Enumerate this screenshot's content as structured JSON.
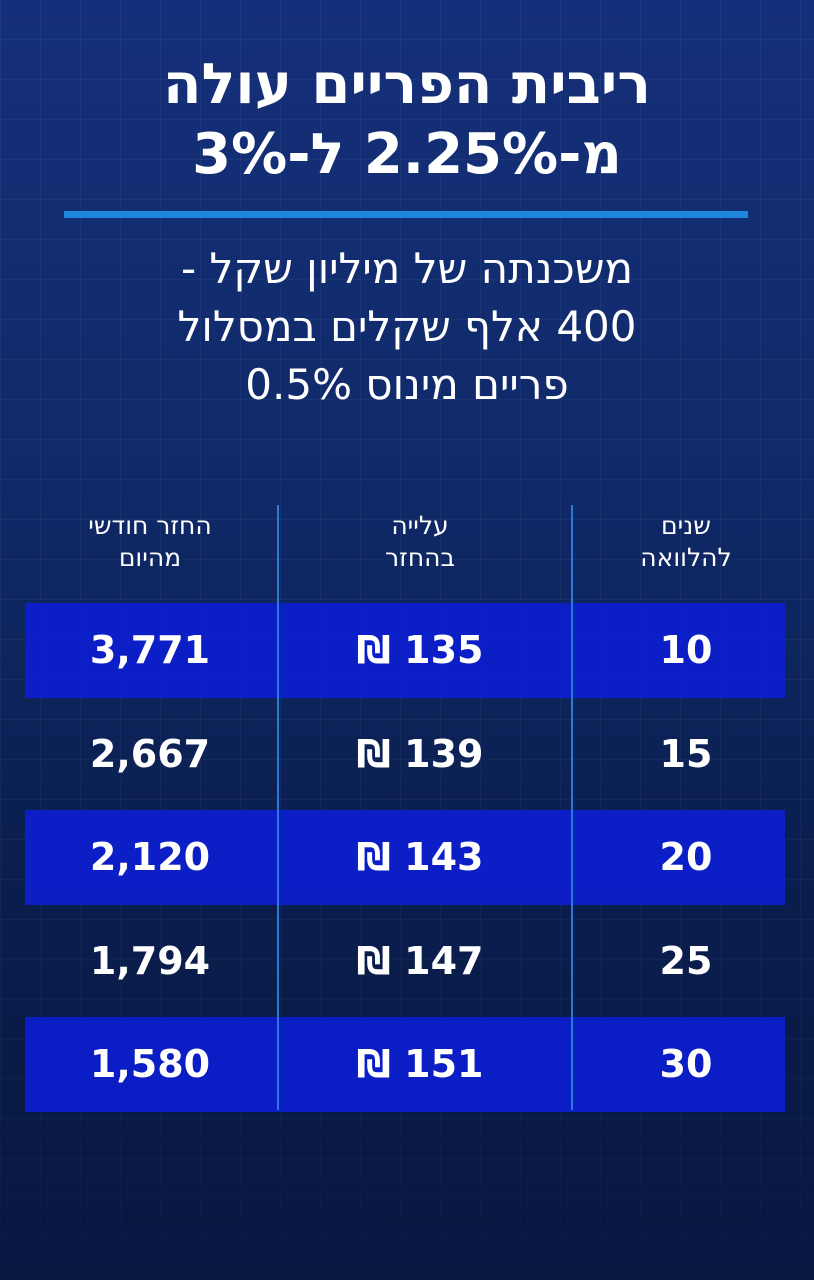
{
  "header": {
    "title": [
      "ריבית הפריים עולה",
      "מ-2.25% ל-3%"
    ],
    "subtitle": [
      "משכנתה של מיליון שקל -",
      "400 אלף שקלים במסלול",
      "פריים מינוס 0.5%"
    ]
  },
  "table": {
    "columns": [
      [
        "שנים",
        "להלוואה"
      ],
      [
        "עלייה",
        "בהחזר"
      ],
      [
        "החזר חודשי",
        "מהיום"
      ]
    ],
    "rows": [
      [
        "10",
        "135 ₪",
        "3,771"
      ],
      [
        "15",
        "139 ₪",
        "2,667"
      ],
      [
        "20",
        "143 ₪",
        "2,120"
      ],
      [
        "25",
        "147 ₪",
        "1,794"
      ],
      [
        "30",
        "151 ₪",
        "1,580"
      ]
    ]
  }
}
